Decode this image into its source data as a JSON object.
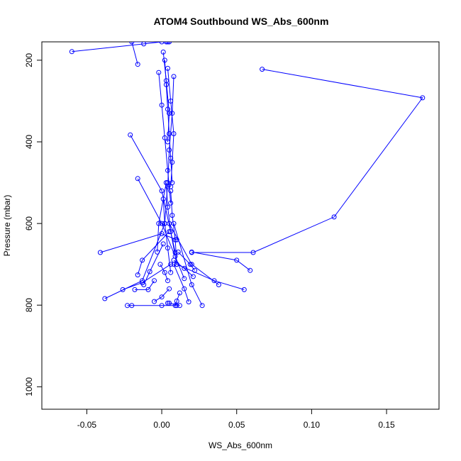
{
  "chart_data": {
    "type": "line",
    "title": "ATOM4 Southbound WS_Abs_600nm",
    "xlabel": "WS_Abs_600nm",
    "ylabel": "Pressure (mbar)",
    "xlim": [
      -0.08,
      0.185
    ],
    "ylim": [
      1055,
      155
    ],
    "y_reversed": true,
    "x_ticks": [
      -0.05,
      0.0,
      0.05,
      0.1,
      0.15
    ],
    "x_tick_labels": [
      "-0.05",
      "0.00",
      "0.05",
      "0.10",
      "0.15"
    ],
    "y_ticks": [
      200,
      400,
      600,
      800,
      1000
    ],
    "y_tick_labels": [
      "200",
      "400",
      "600",
      "800",
      "1000"
    ],
    "grid": false,
    "legend": "none",
    "color": "#0000ff",
    "marker": "open-circle",
    "series": [
      {
        "x": [
          0.067,
          0.174,
          0.115,
          0.061,
          0.02
        ],
        "y": [
          222,
          292,
          584,
          671,
          671
        ]
      },
      {
        "x": [
          -0.06,
          -0.012,
          0.0,
          0.005
        ],
        "y": [
          179,
          160,
          155,
          155
        ]
      },
      {
        "x": [
          -0.016,
          -0.02,
          0.003,
          0.004
        ],
        "y": [
          210,
          155,
          155,
          155
        ]
      },
      {
        "x": [
          -0.021,
          0.0,
          0.009
        ],
        "y": [
          383,
          520,
          671
        ]
      },
      {
        "x": [
          -0.016,
          0.0,
          0.015
        ],
        "y": [
          490,
          600,
          735
        ]
      },
      {
        "x": [
          -0.041,
          0.0,
          0.01
        ],
        "y": [
          671,
          625,
          640
        ]
      },
      {
        "x": [
          -0.038,
          -0.013,
          0.002,
          0.004
        ],
        "y": [
          784,
          740,
          600,
          500
        ]
      },
      {
        "x": [
          -0.023,
          -0.02,
          0.0,
          0.01
        ],
        "y": [
          801,
          801,
          801,
          801
        ]
      },
      {
        "x": [
          -0.026,
          -0.013,
          0.006
        ],
        "y": [
          762,
          745,
          700
        ]
      },
      {
        "x": [
          -0.016,
          -0.013,
          0.005
        ],
        "y": [
          726,
          690,
          620
        ]
      },
      {
        "x": [
          -0.018,
          -0.009,
          -0.005
        ],
        "y": [
          762,
          762,
          740
        ]
      },
      {
        "x": [
          -0.012,
          -0.008,
          0.001
        ],
        "y": [
          750,
          718,
          650
        ]
      },
      {
        "x": [
          -0.005,
          0.0,
          0.005
        ],
        "y": [
          791,
          780,
          760
        ]
      },
      {
        "x": [
          -0.003,
          -0.002,
          0.003
        ],
        "y": [
          670,
          600,
          500
        ]
      },
      {
        "x": [
          -0.001,
          0.002,
          0.004
        ],
        "y": [
          700,
          720,
          740
        ]
      },
      {
        "x": [
          0.004,
          0.005,
          0.012
        ],
        "y": [
          795,
          795,
          801
        ]
      },
      {
        "x": [
          0.009,
          0.01,
          0.012
        ],
        "y": [
          801,
          790,
          770
        ]
      },
      {
        "x": [
          0.018,
          0.015,
          0.008
        ],
        "y": [
          792,
          760,
          700
        ]
      },
      {
        "x": [
          0.027,
          0.02,
          0.008
        ],
        "y": [
          801,
          750,
          600
        ]
      },
      {
        "x": [
          0.022,
          0.019,
          0.011
        ],
        "y": [
          715,
          700,
          670
        ]
      },
      {
        "x": [
          0.021,
          0.015,
          0.008
        ],
        "y": [
          730,
          710,
          690
        ]
      },
      {
        "x": [
          0.038,
          0.02,
          0.005
        ],
        "y": [
          750,
          700,
          600
        ]
      },
      {
        "x": [
          0.055,
          0.035,
          0.01
        ],
        "y": [
          762,
          740,
          700
        ]
      },
      {
        "x": [
          0.059,
          0.05,
          0.02
        ],
        "y": [
          715,
          690,
          670
        ]
      },
      {
        "x": [
          0.002,
          0.003,
          0.004,
          0.005,
          0.006,
          0.007
        ],
        "y": [
          200,
          260,
          320,
          380,
          440,
          500
        ]
      },
      {
        "x": [
          0.004,
          0.006,
          0.008,
          0.007,
          0.006
        ],
        "y": [
          220,
          300,
          380,
          450,
          510
        ]
      },
      {
        "x": [
          0.001,
          0.003,
          0.005,
          0.004
        ],
        "y": [
          180,
          250,
          330,
          400
        ]
      },
      {
        "x": [
          -0.002,
          0.0,
          0.002,
          0.004,
          0.006
        ],
        "y": [
          230,
          310,
          390,
          470,
          550
        ]
      },
      {
        "x": [
          0.008,
          0.007,
          0.005,
          0.004
        ],
        "y": [
          240,
          330,
          420,
          510
        ]
      },
      {
        "x": [
          0.003,
          0.004,
          0.006,
          0.009
        ],
        "y": [
          500,
          560,
          620,
          680
        ]
      },
      {
        "x": [
          0.006,
          0.007,
          0.009,
          0.01
        ],
        "y": [
          520,
          580,
          640,
          700
        ]
      },
      {
        "x": [
          0.001,
          0.002,
          0.004,
          0.006
        ],
        "y": [
          540,
          600,
          660,
          720
        ]
      }
    ]
  }
}
